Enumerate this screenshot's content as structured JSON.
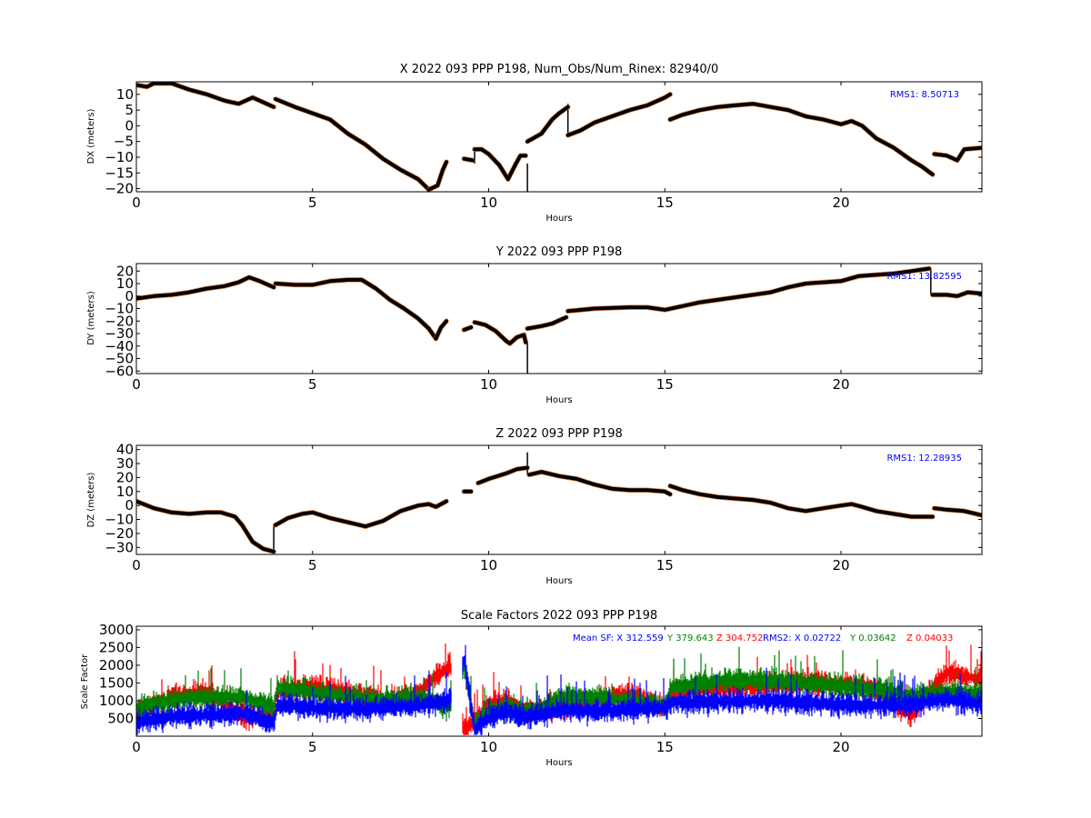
{
  "chart_data": [
    {
      "type": "scatter",
      "title": "X 2022 093 PPP  P198, Num_Obs/Num_Rinex: 82940/0",
      "xlabel": "Hours",
      "ylabel": "DX (meters)",
      "xlim": [
        0,
        24
      ],
      "ylim": [
        -21,
        14
      ],
      "xticks": [
        "0",
        "5",
        "10",
        "15",
        "20"
      ],
      "yticks": [
        "10",
        "5",
        "0",
        "−5",
        "−10",
        "−15",
        "−20"
      ],
      "rms_label": "RMS1:  8.50713",
      "colors": {
        "points": "#000000",
        "outliers": "#d2691e",
        "rms": "#0000ff"
      },
      "series": [
        {
          "x": [
            0,
            0.3,
            0.5,
            1.0,
            1.5,
            2.0,
            2.5,
            2.9,
            3.3,
            3.6,
            3.9
          ],
          "y": [
            13,
            12.4,
            13.5,
            13.5,
            11.5,
            10,
            8,
            7,
            9,
            7.5,
            6
          ]
        },
        {
          "x": [
            3.95,
            4.5,
            5.0,
            5.5,
            6.0,
            6.5,
            7.0,
            7.5,
            8.0,
            8.3
          ],
          "y": [
            8.5,
            6,
            4,
            2,
            -2.5,
            -6,
            -10.5,
            -14,
            -17,
            -20.3
          ]
        },
        {
          "x": [
            8.3,
            8.55,
            8.7,
            8.8
          ],
          "y": [
            -20.3,
            -19,
            -14,
            -11.5
          ]
        },
        {
          "x": [
            9.3,
            9.55
          ],
          "y": [
            -10.5,
            -11
          ]
        },
        {
          "x": [
            9.6,
            9.8,
            10.0,
            10.3,
            10.55,
            10.75,
            10.9,
            11.05
          ],
          "y": [
            -7.5,
            -7.5,
            -9,
            -12.5,
            -17,
            -12.5,
            -9.5,
            -9.5
          ]
        },
        {
          "x": [
            11.1,
            11.5,
            11.8,
            12.0,
            12.25
          ],
          "y": [
            -5,
            -2.5,
            2,
            4,
            6
          ]
        },
        {
          "x": [
            12.25,
            12.6,
            13.0,
            13.5,
            14.0,
            14.5,
            15.0,
            15.15
          ],
          "y": [
            -3,
            -1.5,
            1,
            3,
            5,
            6.5,
            9,
            10
          ]
        },
        {
          "x": [
            15.15,
            15.5,
            16.0,
            16.5,
            17.0,
            17.5,
            18.0,
            18.5,
            19.0,
            19.5,
            20.0,
            20.3,
            20.6,
            21.0,
            21.5,
            22.0,
            22.3,
            22.6
          ],
          "y": [
            2,
            3.5,
            5,
            6,
            6.5,
            7,
            6,
            5,
            3,
            2,
            0.5,
            1.5,
            0,
            -4,
            -7,
            -11,
            -13,
            -15.5
          ]
        },
        {
          "x": [
            22.65,
            23.0,
            23.3,
            23.5,
            24.0
          ],
          "y": [
            -9,
            -9.5,
            -11,
            -7.5,
            -7
          ]
        }
      ],
      "spikes": [
        {
          "x": 11.1,
          "y0": -12,
          "y1": -21
        },
        {
          "x": 12.25,
          "y0": 7,
          "y1": -3
        },
        {
          "x": 9.6,
          "y0": -7.5,
          "y1": -12
        }
      ]
    },
    {
      "type": "scatter",
      "title": "Y 2022 093 PPP  P198",
      "xlabel": "Hours",
      "ylabel": "DY (meters)",
      "xlim": [
        0,
        24
      ],
      "ylim": [
        -62,
        26
      ],
      "xticks": [
        "0",
        "5",
        "10",
        "15",
        "20"
      ],
      "yticks": [
        "20",
        "10",
        "0",
        "−10",
        "−20",
        "−30",
        "−40",
        "−50",
        "−60"
      ],
      "rms_label": "RMS1: 13.82595",
      "colors": {
        "points": "#000000",
        "outliers": "#d2691e",
        "rms": "#0000ff"
      },
      "series": [
        {
          "x": [
            0,
            0.5,
            1.0,
            1.5,
            2.0,
            2.5,
            2.9,
            3.2,
            3.5,
            3.9
          ],
          "y": [
            -2,
            0,
            1,
            3,
            6,
            8,
            11,
            15,
            12,
            7
          ]
        },
        {
          "x": [
            3.95,
            4.5,
            5.0,
            5.5,
            6.0,
            6.4,
            6.8,
            7.2,
            7.6,
            8.0,
            8.3,
            8.5
          ],
          "y": [
            10,
            9,
            9,
            12,
            13,
            13,
            6,
            -3,
            -10,
            -18,
            -26,
            -34
          ]
        },
        {
          "x": [
            8.5,
            8.65,
            8.8
          ],
          "y": [
            -34,
            -25,
            -20
          ]
        },
        {
          "x": [
            9.3,
            9.5
          ],
          "y": [
            -27,
            -25
          ]
        },
        {
          "x": [
            9.6,
            9.9,
            10.2,
            10.5,
            10.6,
            10.8,
            11.0,
            11.05
          ],
          "y": [
            -21,
            -23,
            -28,
            -36,
            -38,
            -33,
            -31,
            -37
          ]
        },
        {
          "x": [
            11.1,
            11.5,
            11.8,
            12.2
          ],
          "y": [
            -26,
            -24,
            -22,
            -17
          ]
        },
        {
          "x": [
            12.25,
            13.0,
            14.0,
            14.5,
            15.0,
            15.5,
            16.0,
            17.0,
            18.0,
            18.5,
            19.0,
            19.5,
            20.0,
            20.5,
            21.0,
            21.5,
            22.0,
            22.5
          ],
          "y": [
            -12,
            -10,
            -9,
            -9,
            -11,
            -8,
            -5,
            -1,
            3,
            7,
            10,
            11,
            12,
            16,
            17,
            18,
            20,
            22
          ]
        },
        {
          "x": [
            22.6,
            23.0,
            23.3,
            23.6,
            24.0
          ],
          "y": [
            1,
            1,
            0,
            3,
            2
          ]
        }
      ],
      "spikes": [
        {
          "x": 11.1,
          "y0": -36,
          "y1": -62
        },
        {
          "x": 22.55,
          "y0": 22,
          "y1": 1
        }
      ]
    },
    {
      "type": "scatter",
      "title": "Z 2022 093 PPP  P198",
      "xlabel": "Hours",
      "ylabel": "DZ (meters)",
      "xlim": [
        0,
        24
      ],
      "ylim": [
        -35,
        43
      ],
      "xticks": [
        "0",
        "5",
        "10",
        "15",
        "20"
      ],
      "yticks": [
        "40",
        "30",
        "20",
        "10",
        "0",
        "−10",
        "−20",
        "−30"
      ],
      "rms_label": "RMS1: 12.28935",
      "colors": {
        "points": "#000000",
        "outliers": "#d2691e",
        "rms": "#0000ff"
      },
      "series": [
        {
          "x": [
            0,
            0.5,
            1.0,
            1.5,
            2.0,
            2.4,
            2.8,
            3.0,
            3.3,
            3.6,
            3.9
          ],
          "y": [
            3,
            -2,
            -5,
            -6,
            -5,
            -5,
            -8,
            -14,
            -26,
            -31,
            -33
          ]
        },
        {
          "x": [
            3.95,
            4.3,
            4.7,
            5.0,
            5.5,
            6.0,
            6.5,
            7.0,
            7.5,
            8.0,
            8.3,
            8.5,
            8.8
          ],
          "y": [
            -14,
            -9,
            -6,
            -5,
            -9,
            -12,
            -15,
            -11,
            -4,
            0,
            1,
            -1,
            3
          ]
        },
        {
          "x": [
            9.3,
            9.5
          ],
          "y": [
            10,
            10
          ]
        },
        {
          "x": [
            9.7,
            10.0,
            10.5,
            10.8,
            11.1
          ],
          "y": [
            16,
            19,
            23,
            26,
            27
          ]
        },
        {
          "x": [
            11.15,
            11.5,
            12.0,
            12.5,
            13.0,
            13.5,
            14.0,
            14.5,
            15.0,
            15.15
          ],
          "y": [
            22,
            24,
            21,
            19,
            15,
            12,
            11,
            11,
            10,
            8
          ]
        },
        {
          "x": [
            15.15,
            15.5,
            16.0,
            16.5,
            17.0,
            17.5,
            18.0,
            18.5,
            19.0,
            19.5,
            20.0,
            20.3,
            20.6,
            21.0,
            21.5,
            22.0,
            22.6
          ],
          "y": [
            14,
            11,
            8,
            6,
            5,
            4,
            2,
            -2,
            -4,
            -2,
            0,
            1,
            -1,
            -4,
            -6,
            -8,
            -8
          ]
        },
        {
          "x": [
            22.65,
            23.0,
            23.5,
            24.0
          ],
          "y": [
            -2,
            -3,
            -4,
            -7
          ]
        }
      ],
      "spikes": [
        {
          "x": 11.1,
          "y0": 38,
          "y1": 22
        },
        {
          "x": 3.9,
          "y0": -33,
          "y1": -13
        }
      ]
    },
    {
      "type": "scatter",
      "title": "Scale Factors 2022 093 PPP  P198",
      "xlabel": "Hours",
      "ylabel": "Scale Factor",
      "xlim": [
        0,
        24
      ],
      "ylim": [
        0,
        3100
      ],
      "xticks": [
        "0",
        "5",
        "10",
        "15",
        "20"
      ],
      "yticks": [
        "3000",
        "2500",
        "2000",
        "1500",
        "1000",
        "500"
      ],
      "annotation": {
        "mean_sf": "Mean SF: X 312.559",
        "mean_y": "Y 379.643",
        "mean_z": "Z 304.752",
        "rms2_x": "RMS2: X  0.02722",
        "rms2_y": "Y  0.03642",
        "rms2_z": "Z  0.04033"
      },
      "colors": {
        "x": "#0000ff",
        "y": "#008000",
        "z": "#ff0000"
      },
      "series": [
        {
          "name": "X",
          "x": [
            0,
            1,
            2,
            3,
            3.9,
            4,
            5,
            6,
            7,
            8,
            8.9,
            9.3,
            9.6,
            10,
            10.5,
            11,
            11.5,
            12,
            13,
            14,
            15,
            15.2,
            16,
            17,
            18,
            19,
            20,
            21,
            22,
            23,
            24
          ],
          "y": [
            400,
            550,
            600,
            650,
            350,
            900,
            800,
            750,
            800,
            850,
            1000,
            2200,
            200,
            500,
            700,
            550,
            600,
            750,
            700,
            750,
            800,
            950,
            950,
            1000,
            1000,
            950,
            900,
            850,
            900,
            1050,
            900
          ]
        },
        {
          "name": "Y",
          "x": [
            0,
            1,
            2,
            3,
            3.9,
            4,
            5,
            6,
            7,
            8,
            8.9,
            9.3,
            9.6,
            10,
            10.5,
            11,
            11.5,
            12,
            13,
            14,
            15,
            15.2,
            16,
            17,
            18,
            19,
            20,
            21,
            22,
            23,
            24
          ],
          "y": [
            800,
            1000,
            1100,
            1100,
            800,
            1350,
            1250,
            1100,
            1050,
            1100,
            800,
            2000,
            300,
            700,
            800,
            700,
            800,
            1100,
            1100,
            1000,
            850,
            1400,
            1500,
            1600,
            1550,
            1500,
            1400,
            1300,
            1150,
            1250,
            1200
          ]
        },
        {
          "name": "Z",
          "x": [
            0,
            1,
            2,
            3,
            3.9,
            4,
            5,
            6,
            7,
            8,
            8.5,
            8.9,
            9.3,
            9.6,
            10,
            10.5,
            11,
            11.5,
            12,
            13,
            14,
            15,
            15.2,
            16,
            17,
            18,
            19,
            20,
            21,
            22,
            23,
            24
          ],
          "y": [
            700,
            1100,
            1250,
            550,
            600,
            1300,
            1400,
            1200,
            1000,
            1200,
            1700,
            2000,
            200,
            400,
            900,
            1000,
            700,
            800,
            800,
            1000,
            1200,
            800,
            1200,
            1300,
            1400,
            1450,
            1500,
            1500,
            1350,
            600,
            1800,
            1600
          ]
        }
      ]
    }
  ]
}
